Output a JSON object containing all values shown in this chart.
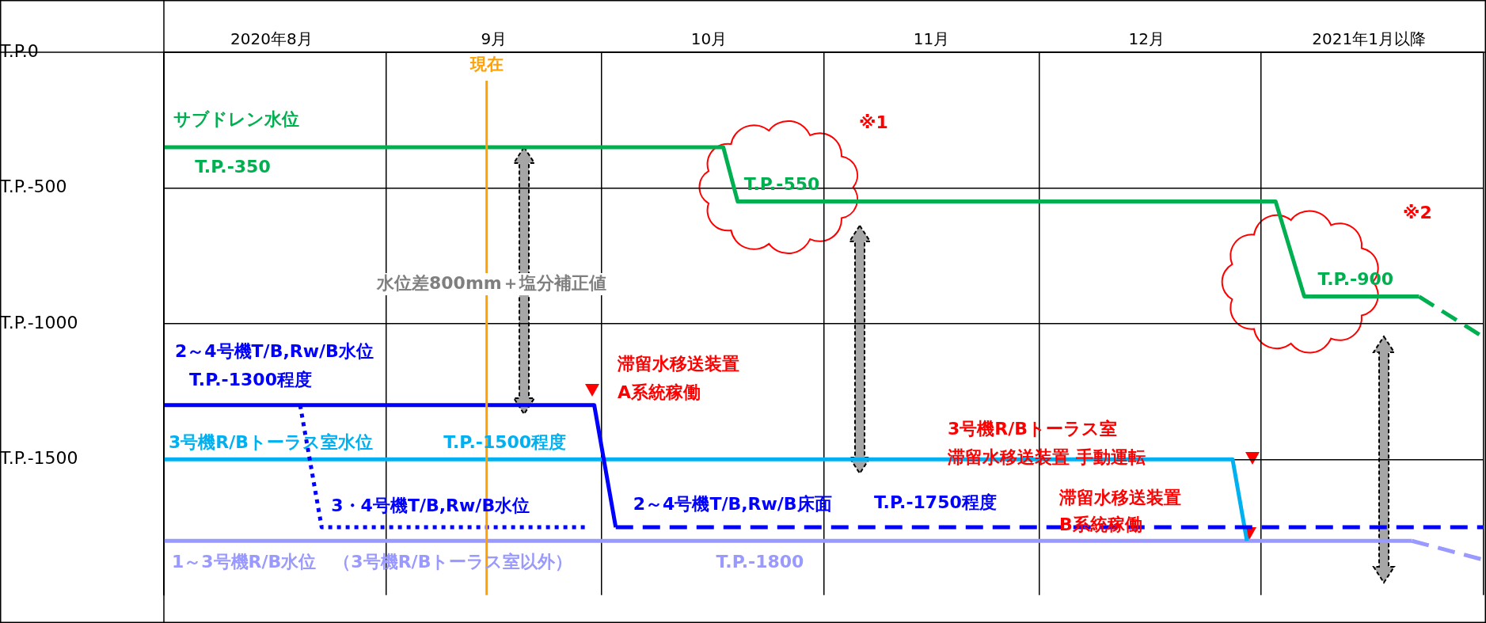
{
  "chart_data": {
    "type": "line",
    "xlim": [
      "2020-08-01",
      "2021-02-01"
    ],
    "xticks": [
      {
        "value": "2020-08-01",
        "label": null
      },
      {
        "value": "2020-08-16",
        "label": "2020年8月"
      },
      {
        "value": "2020-09-01",
        "label": null
      },
      {
        "value": "2020-09-16",
        "label": "9月"
      },
      {
        "value": "2020-10-01",
        "label": null
      },
      {
        "value": "2020-10-16",
        "label": "10月"
      },
      {
        "value": "2020-11-01",
        "label": null
      },
      {
        "value": "2020-11-16",
        "label": "11月"
      },
      {
        "value": "2020-12-01",
        "label": null
      },
      {
        "value": "2020-12-16",
        "label": "12月"
      },
      {
        "value": "2021-01-01",
        "label": null
      },
      {
        "value": "2021-01-16",
        "label": "2021年1月以降"
      },
      {
        "value": "2021-02-01",
        "label": null
      }
    ],
    "ylim": [
      -2000,
      0
    ],
    "yticks": [
      {
        "value": 0,
        "label": "T.P.0"
      },
      {
        "value": -500,
        "label": "T.P.-500"
      },
      {
        "value": -1000,
        "label": "T.P.-1000"
      },
      {
        "value": -1500,
        "label": "T.P.-1500"
      }
    ],
    "grid": true,
    "legend": false,
    "marker": "none",
    "series": [
      {
        "name": "サブドレン水位",
        "color": "#00b050",
        "x": [
          "2020-08-01",
          "2020-10-18",
          "2020-10-20",
          "2021-01-03",
          "2021-01-07",
          "2021-01-23"
        ],
        "values": [
          -350,
          -350,
          -550,
          -550,
          -900,
          -900
        ]
      },
      {
        "color": "#00b050",
        "line_style": "dashed",
        "x": [
          "2021-01-23",
          "2021-02-01"
        ],
        "values": [
          -900,
          -1050
        ]
      },
      {
        "name": "2～4号機T/B,Rw/B水位",
        "color": "#0000ff",
        "x": [
          "2020-08-01",
          "2020-09-30",
          "2020-10-03"
        ],
        "values": [
          -1300,
          -1300,
          -1750
        ]
      },
      {
        "name": "2～4号機T/B,Rw/B床面",
        "color": "#0000ff",
        "line_style": "dashed",
        "x": [
          "2020-10-03",
          "2021-02-01"
        ],
        "values": [
          -1750,
          -1750
        ]
      },
      {
        "name": "3・4号機T/B,Rw/B水位",
        "color": "#0000ff",
        "line_style": "dotted",
        "x": [
          "2020-08-20",
          "2020-08-23",
          "2020-09-29"
        ],
        "values": [
          -1300,
          -1750,
          -1750
        ]
      },
      {
        "name": "3号機R/Bトーラス室水位",
        "color": "#00b0f0",
        "x": [
          "2020-08-01",
          "2020-12-28",
          "2020-12-30"
        ],
        "values": [
          -1500,
          -1500,
          -1800
        ]
      },
      {
        "name": "1～3号機R/B水位　（3号機R/Bトーラス室以外）",
        "color": "#9999ff",
        "x": [
          "2020-08-01",
          "2021-01-22"
        ],
        "values": [
          -1800,
          -1800
        ]
      },
      {
        "color": "#9999ff",
        "line_style": "dashed",
        "x": [
          "2021-01-22",
          "2021-02-01"
        ],
        "values": [
          -1800,
          -1870
        ]
      }
    ],
    "ref_lines": [
      {
        "axis": "x",
        "value": "2020-09-15",
        "label": "現在",
        "color": "#ffa000"
      }
    ],
    "annotations": [
      {
        "text": "T.P.-350",
        "x": "2020-08-04",
        "y": -350
      },
      {
        "text": "T.P.-550",
        "x": "2020-10-20",
        "y": -550
      },
      {
        "text": "T.P.-900",
        "x": "2021-01-08",
        "y": -900
      },
      {
        "text": "T.P.-1300程度",
        "x": "2020-08-03",
        "y": -1300
      },
      {
        "text": "T.P.-1500程度",
        "x": "2020-09-09",
        "y": -1500
      },
      {
        "text": "T.P.-1750程度",
        "x": "2020-11-08",
        "y": -1750
      },
      {
        "text": "T.P.-1800",
        "x": "2020-10-17",
        "y": -1800
      },
      "※1",
      "※2",
      "水位差800mm＋塩分補正値",
      "滞留水移送装置",
      "A系統稼働",
      "3号機R/Bトーラス室",
      "滞留水移送装置 手動運転",
      "滞留水移送装置",
      "B系統稼働"
    ]
  }
}
